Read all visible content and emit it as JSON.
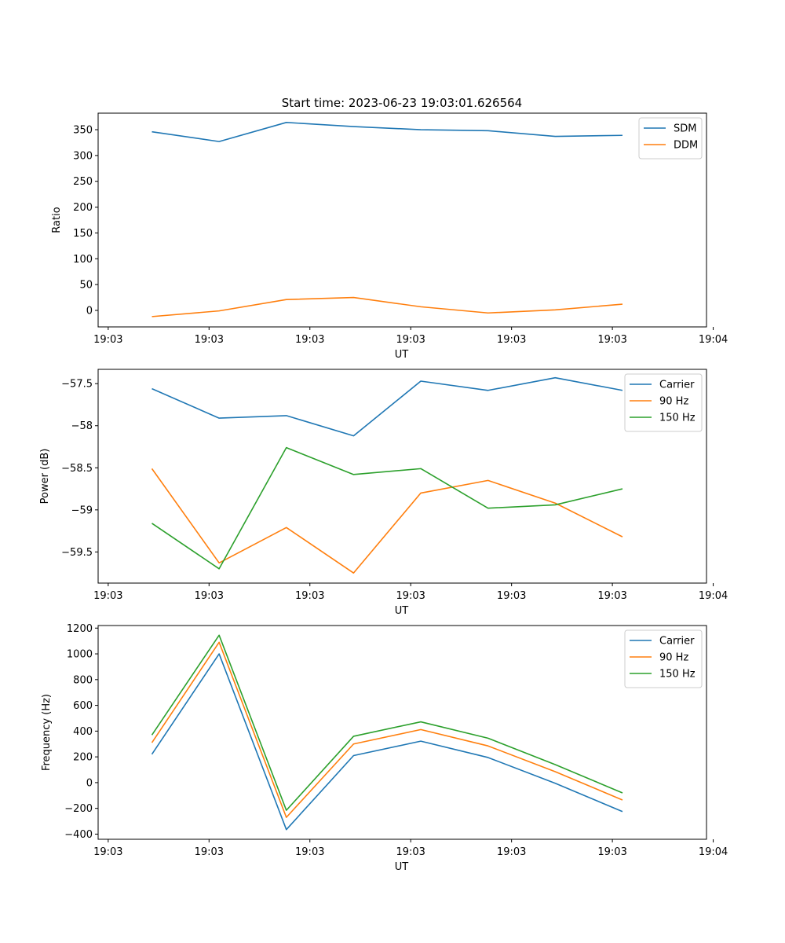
{
  "figure": {
    "title": "Start time: 2023-06-23 19:03:01.626564"
  },
  "colors": {
    "blue": "#1f77b4",
    "orange": "#ff7f0e",
    "green": "#2ca02c",
    "legend_border": "#cccccc"
  },
  "chart_data": [
    {
      "type": "line",
      "title": "Start time: 2023-06-23 19:03:01.626564",
      "xlabel": "UT",
      "ylabel": "Ratio",
      "x_tick_labels": [
        "19:03",
        "19:03",
        "19:03",
        "19:03",
        "19:03",
        "19:03",
        "19:04"
      ],
      "x": [
        1,
        2,
        3,
        4,
        5,
        6,
        7,
        8
      ],
      "xlim": [
        0.2,
        9.25
      ],
      "ylim": [
        -32,
        382
      ],
      "y_ticks": [
        0,
        50,
        100,
        150,
        200,
        250,
        300,
        350
      ],
      "legend_position": "top-right",
      "series": [
        {
          "name": "SDM",
          "color": "#1f77b4",
          "values": [
            346,
            327,
            364,
            356,
            350,
            348,
            337,
            339
          ]
        },
        {
          "name": "DDM",
          "color": "#ff7f0e",
          "values": [
            -12,
            -1,
            21,
            25,
            7,
            -5,
            1,
            12
          ]
        }
      ]
    },
    {
      "type": "line",
      "title": "",
      "xlabel": "UT",
      "ylabel": "Power (dB)",
      "x_tick_labels": [
        "19:03",
        "19:03",
        "19:03",
        "19:03",
        "19:03",
        "19:03",
        "19:04"
      ],
      "x": [
        1,
        2,
        3,
        4,
        5,
        6,
        7,
        8
      ],
      "xlim": [
        0.2,
        9.25
      ],
      "ylim": [
        -59.87,
        -57.33
      ],
      "y_ticks": [
        -59.5,
        -59.0,
        -58.5,
        -58.0,
        -57.5
      ],
      "legend_position": "top-right",
      "series": [
        {
          "name": "Carrier",
          "color": "#1f77b4",
          "values": [
            -57.56,
            -57.91,
            -57.88,
            -58.12,
            -57.47,
            -57.58,
            -57.43,
            -57.58
          ]
        },
        {
          "name": "90 Hz",
          "color": "#ff7f0e",
          "values": [
            -58.51,
            -59.63,
            -59.21,
            -59.75,
            -58.8,
            -58.65,
            -58.92,
            -59.32
          ]
        },
        {
          "name": "150 Hz",
          "color": "#2ca02c",
          "values": [
            -59.16,
            -59.7,
            -58.26,
            -58.58,
            -58.51,
            -58.98,
            -58.94,
            -58.75
          ]
        }
      ]
    },
    {
      "type": "line",
      "title": "",
      "xlabel": "UT",
      "ylabel": "Frequency (Hz)",
      "x_tick_labels": [
        "19:03",
        "19:03",
        "19:03",
        "19:03",
        "19:03",
        "19:03",
        "19:04"
      ],
      "x": [
        1,
        2,
        3,
        4,
        5,
        6,
        7,
        8
      ],
      "xlim": [
        0.2,
        9.25
      ],
      "ylim": [
        -440,
        1220
      ],
      "y_ticks": [
        -400,
        -200,
        0,
        200,
        400,
        600,
        800,
        1000,
        1200
      ],
      "legend_position": "top-right",
      "series": [
        {
          "name": "Carrier",
          "color": "#1f77b4",
          "values": [
            220,
            1000,
            -365,
            210,
            322,
            195,
            -5,
            -225
          ]
        },
        {
          "name": "90 Hz",
          "color": "#ff7f0e",
          "values": [
            310,
            1090,
            -270,
            300,
            412,
            285,
            85,
            -135
          ]
        },
        {
          "name": "150 Hz",
          "color": "#2ca02c",
          "values": [
            370,
            1145,
            -215,
            360,
            472,
            345,
            140,
            -80
          ]
        }
      ]
    }
  ]
}
